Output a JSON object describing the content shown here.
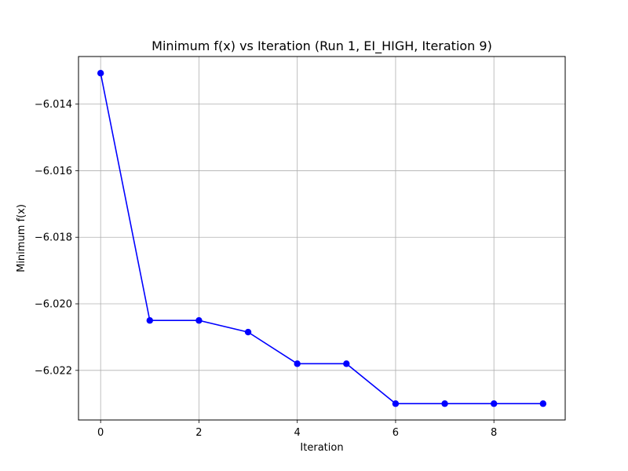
{
  "chart_data": {
    "type": "line",
    "title": "Minimum f(x) vs Iteration (Run 1, EI_HIGH, Iteration 9)",
    "xlabel": "Iteration",
    "ylabel": "Minimum f(x)",
    "x": [
      0,
      1,
      2,
      3,
      4,
      5,
      6,
      7,
      8,
      9
    ],
    "series": [
      {
        "values": [
          -6.01307,
          -6.0205,
          -6.0205,
          -6.02085,
          -6.0218,
          -6.0218,
          -6.023,
          -6.023,
          -6.023,
          -6.023
        ]
      }
    ],
    "xlim": [
      -0.45,
      9.45
    ],
    "ylim": [
      -6.02349,
      -6.01257
    ],
    "xticks": [
      0,
      2,
      4,
      6,
      8
    ],
    "xtick_labels": [
      "0",
      "2",
      "4",
      "6",
      "8"
    ],
    "yticks": [
      -6.014,
      -6.016,
      -6.018,
      -6.02,
      -6.022
    ],
    "ytick_labels": [
      "−6.014",
      "−6.016",
      "−6.018",
      "−6.020",
      "−6.022"
    ],
    "grid": true,
    "marker": "circle",
    "color": "#0000ff",
    "grid_color": "#b0b0b0"
  }
}
